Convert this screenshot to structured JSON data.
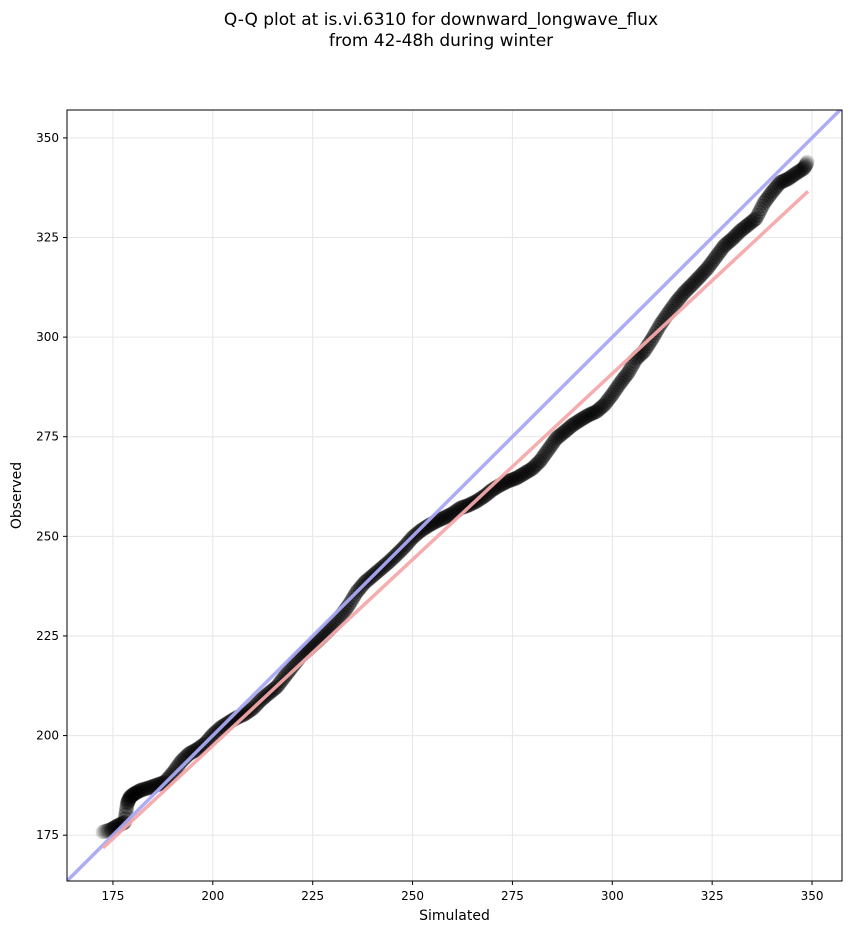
{
  "chart_data": {
    "type": "scatter",
    "title_lines": [
      "Q-Q plot at is.vi.6310 for downward_longwave_flux",
      "from 42-48h during winter"
    ],
    "xlabel": "Simulated",
    "ylabel": "Observed",
    "xlim": [
      163.5,
      357.5
    ],
    "ylim": [
      163.5,
      357.0
    ],
    "xticks": [
      175,
      200,
      225,
      250,
      275,
      300,
      325,
      350
    ],
    "yticks": [
      175,
      200,
      225,
      250,
      275,
      300,
      325,
      350
    ],
    "grid": true,
    "colors": {
      "points": "#000000",
      "identity_line": "#a9a9f5",
      "fit_line": "#f4a9ab",
      "grid": "#e6e6e6",
      "frame": "#000000"
    },
    "identity_line": {
      "x": [
        163.5,
        357.5
      ],
      "y": [
        163.5,
        357.5
      ]
    },
    "fit_line": {
      "x": [
        172.5,
        349.0
      ],
      "y": [
        171.8,
        336.6
      ]
    },
    "points": {
      "x": [
        172.5,
        174.5,
        176.2,
        177.9,
        178.6,
        179.3,
        180.5,
        182.0,
        184.0,
        186.0,
        188.0,
        190.0,
        192.0,
        194.0,
        196.0,
        198.0,
        200.0,
        202.0,
        204.0,
        206.0,
        208.0,
        210.0,
        212.0,
        214.0,
        216.0,
        218.0,
        220.0,
        222.0,
        224.0,
        226.0,
        228.0,
        230.0,
        232.0,
        234.0,
        236.0,
        238.0,
        240.0,
        242.0,
        244.0,
        246.0,
        248.0,
        250.0,
        252.0,
        254.0,
        256.0,
        258.0,
        260.0,
        262.0,
        264.0,
        266.0,
        268.0,
        270.0,
        272.0,
        274.0,
        276.0,
        278.0,
        280.0,
        282.0,
        284.0,
        286.0,
        288.0,
        290.0,
        292.0,
        294.0,
        296.0,
        298.0,
        300.0,
        302.0,
        304.0,
        306.0,
        308.0,
        310.0,
        312.0,
        314.0,
        316.0,
        318.0,
        320.0,
        322.0,
        324.0,
        326.0,
        328.0,
        330.0,
        332.0,
        334.0,
        336.0,
        338.0,
        340.0,
        342.0,
        344.0,
        346.0,
        348.0,
        348.8
      ],
      "y": [
        175.8,
        176.4,
        177.4,
        178.2,
        183.0,
        184.6,
        185.5,
        186.3,
        186.9,
        187.6,
        188.3,
        190.6,
        193.4,
        195.4,
        196.5,
        197.9,
        200.2,
        202.0,
        203.3,
        204.5,
        205.4,
        206.8,
        208.9,
        210.6,
        212.2,
        214.8,
        217.4,
        219.9,
        221.7,
        223.5,
        225.4,
        227.4,
        230.0,
        232.7,
        236.0,
        238.4,
        240.1,
        241.8,
        243.5,
        245.4,
        247.4,
        249.7,
        251.4,
        252.7,
        253.8,
        254.7,
        255.7,
        257.1,
        257.8,
        258.8,
        260.1,
        261.7,
        262.9,
        263.9,
        264.6,
        265.8,
        267.0,
        269.0,
        271.8,
        274.6,
        276.2,
        277.9,
        279.2,
        280.4,
        281.3,
        283.0,
        285.6,
        288.5,
        291.1,
        294.6,
        296.5,
        299.6,
        303.1,
        306.0,
        308.8,
        311.2,
        313.2,
        315.3,
        317.5,
        320.2,
        322.9,
        324.6,
        326.6,
        328.2,
        329.8,
        333.7,
        336.4,
        338.8,
        339.7,
        341.1,
        342.4,
        343.9
      ]
    }
  }
}
